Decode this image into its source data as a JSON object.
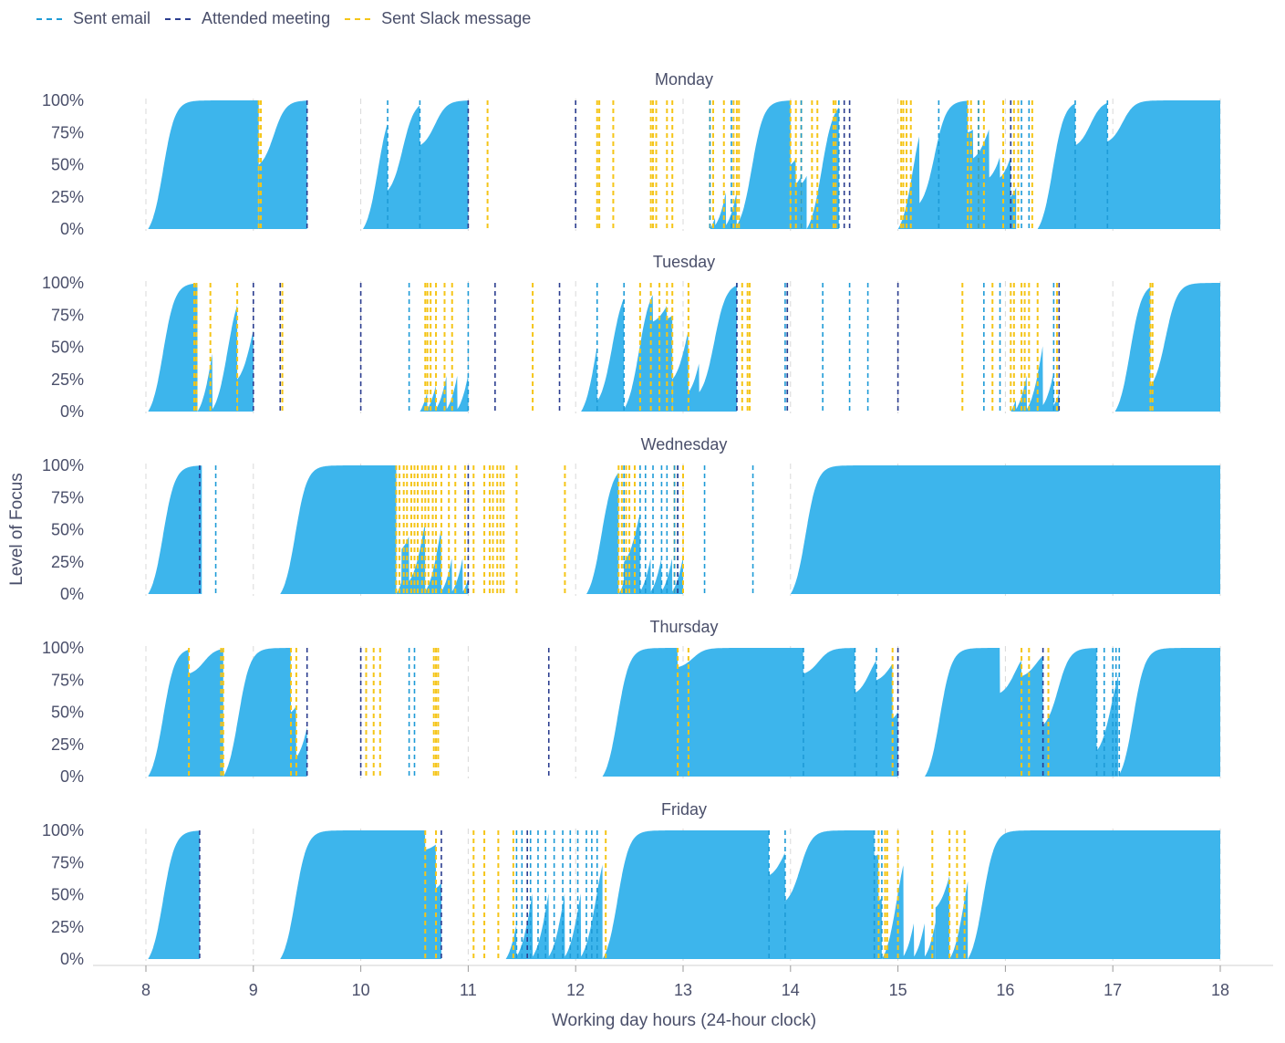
{
  "legend": {
    "items": [
      {
        "label": "Sent email",
        "color": "#1e9bd7"
      },
      {
        "label": "Attended meeting",
        "color": "#2b3d8f"
      },
      {
        "label": "Sent Slack message",
        "color": "#f5c518"
      }
    ]
  },
  "chart_data": {
    "type": "area",
    "xlabel": "Working day hours (24-hour clock)",
    "ylabel": "Level of Focus",
    "xlim": [
      8,
      18
    ],
    "x_ticks": [
      8,
      9,
      10,
      11,
      12,
      13,
      14,
      15,
      16,
      17,
      18
    ],
    "ylim": [
      0,
      100
    ],
    "y_ticks": [
      "0%",
      "25%",
      "50%",
      "75%",
      "100%"
    ],
    "grid": "vertical dashed",
    "legend_position": "top-left",
    "fill_color": "#3db5ec",
    "panels": [
      {
        "day": "Monday",
        "focus_segments": [
          {
            "start": 8.02,
            "end": 9.05,
            "floor": 0,
            "resets": []
          },
          {
            "start": 9.05,
            "end": 9.5,
            "floor": 0.5,
            "resets": []
          },
          {
            "start": 10.02,
            "end": 11.0,
            "floor": 0,
            "resets": [
              [
                10.25,
                0.3
              ],
              [
                10.55,
                0.65
              ]
            ]
          },
          {
            "start": 13.25,
            "end": 14.0,
            "floor": 0,
            "resets": [
              [
                13.3,
                0.03
              ],
              [
                13.4,
                0.03
              ],
              [
                13.5,
                0.03
              ]
            ]
          },
          {
            "start": 14.0,
            "end": 14.15,
            "floor": 0.5,
            "resets": [
              [
                14.05,
                0.35
              ],
              [
                14.1,
                0.35
              ]
            ]
          },
          {
            "start": 14.15,
            "end": 14.45,
            "floor": 0,
            "resets": []
          },
          {
            "start": 15.0,
            "end": 16.1,
            "floor": 0,
            "resets": [
              [
                15.2,
                0.2
              ],
              [
                15.65,
                0.75
              ],
              [
                15.7,
                0.55
              ],
              [
                15.85,
                0.4
              ],
              [
                15.95,
                0.4
              ],
              [
                16.05,
                0.25
              ]
            ]
          },
          {
            "start": 16.3,
            "end": 18.0,
            "floor": 0,
            "resets": [
              [
                16.65,
                0.65
              ],
              [
                16.95,
                0.68
              ]
            ]
          }
        ],
        "events": {
          "email": [
            10.25,
            10.55,
            13.25,
            13.45,
            14.1,
            14.45,
            15.38,
            15.75,
            16.05,
            16.15,
            16.22,
            16.65,
            16.95
          ],
          "meeting": [
            9.5,
            11.0,
            12.0,
            14.5,
            14.55,
            16.05
          ],
          "slack": [
            9.05,
            9.07,
            11.18,
            12.2,
            12.22,
            12.35,
            12.7,
            12.72,
            12.75,
            12.85,
            12.9,
            13.25,
            13.28,
            13.38,
            13.47,
            13.5,
            13.52,
            14.0,
            14.05,
            14.1,
            14.2,
            14.25,
            14.4,
            14.42,
            15.03,
            15.05,
            15.08,
            15.12,
            15.65,
            15.68,
            15.75,
            15.8,
            15.98,
            16.08,
            16.12,
            16.25
          ]
        }
      },
      {
        "day": "Tuesday",
        "focus_segments": [
          {
            "start": 8.02,
            "end": 8.48,
            "floor": 0,
            "resets": []
          },
          {
            "start": 8.48,
            "end": 8.85,
            "floor": 0,
            "resets": [
              [
                8.62,
                0.02
              ]
            ]
          },
          {
            "start": 8.85,
            "end": 9.0,
            "floor": 0.25,
            "resets": []
          },
          {
            "start": 10.55,
            "end": 11.0,
            "floor": 0,
            "resets": [
              [
                10.62,
                0.02
              ],
              [
                10.7,
                0.02
              ],
              [
                10.8,
                0.02
              ],
              [
                10.9,
                0.02
              ]
            ]
          },
          {
            "start": 12.05,
            "end": 12.9,
            "floor": 0,
            "resets": [
              [
                12.2,
                0.08
              ],
              [
                12.45,
                0.02
              ],
              [
                12.72,
                0.7
              ],
              [
                12.85,
                0.72
              ]
            ]
          },
          {
            "start": 12.9,
            "end": 13.5,
            "floor": 0.25,
            "resets": [
              [
                13.05,
                0.15
              ],
              [
                13.15,
                0.15
              ]
            ]
          },
          {
            "start": 16.05,
            "end": 16.5,
            "floor": 0,
            "resets": [
              [
                16.1,
                0.02
              ],
              [
                16.2,
                0.02
              ],
              [
                16.35,
                0.05
              ],
              [
                16.45,
                0.05
              ]
            ]
          },
          {
            "start": 17.02,
            "end": 17.35,
            "floor": 0,
            "resets": []
          },
          {
            "start": 17.35,
            "end": 18.0,
            "floor": 0.2,
            "resets": []
          }
        ],
        "events": {
          "email": [
            10.45,
            11.0,
            12.2,
            12.45,
            13.5,
            13.95,
            13.97,
            14.3,
            14.55,
            14.72,
            15.8,
            15.95,
            16.45
          ],
          "meeting": [
            9.0,
            9.25,
            10.0,
            11.25,
            11.85,
            13.5,
            13.97,
            15.0,
            16.5
          ],
          "slack": [
            8.45,
            8.47,
            8.6,
            8.85,
            9.27,
            10.6,
            10.62,
            10.65,
            10.7,
            10.78,
            10.85,
            11.6,
            12.6,
            12.7,
            12.78,
            12.85,
            12.9,
            13.05,
            13.55,
            13.6,
            13.62,
            15.6,
            15.88,
            16.05,
            16.08,
            16.15,
            16.18,
            16.22,
            16.3,
            16.48,
            17.35,
            17.37
          ]
        }
      },
      {
        "day": "Wednesday",
        "focus_segments": [
          {
            "start": 8.02,
            "end": 8.52,
            "floor": 0,
            "resets": []
          },
          {
            "start": 9.25,
            "end": 10.33,
            "floor": 0,
            "resets": []
          },
          {
            "start": 10.33,
            "end": 11.0,
            "floor": 0,
            "resets": [
              [
                10.38,
                0.35
              ],
              [
                10.45,
                0.1
              ],
              [
                10.6,
                0.02
              ],
              [
                10.75,
                0.02
              ],
              [
                10.85,
                0.02
              ],
              [
                10.95,
                0.02
              ]
            ]
          },
          {
            "start": 12.1,
            "end": 12.4,
            "floor": 0,
            "resets": []
          },
          {
            "start": 12.4,
            "end": 13.0,
            "floor": 0,
            "resets": [
              [
                12.45,
                0.25
              ],
              [
                12.6,
                0.02
              ],
              [
                12.7,
                0.02
              ],
              [
                12.8,
                0.02
              ],
              [
                12.9,
                0.02
              ]
            ]
          },
          {
            "start": 14.0,
            "end": 18.0,
            "floor": 0,
            "resets": []
          }
        ],
        "events": {
          "email": [
            8.65,
            12.45,
            12.6,
            12.65,
            12.72,
            12.8,
            12.85,
            12.92,
            12.95,
            13.2,
            13.65
          ],
          "meeting": [
            8.5,
            11.0,
            12.95
          ],
          "slack": [
            10.33,
            10.36,
            10.4,
            10.43,
            10.47,
            10.5,
            10.53,
            10.57,
            10.6,
            10.63,
            10.67,
            10.7,
            10.75,
            10.82,
            10.88,
            10.97,
            11.05,
            11.15,
            11.2,
            11.23,
            11.27,
            11.3,
            11.33,
            11.45,
            11.9,
            12.4,
            12.43,
            12.47,
            12.5,
            12.55,
            12.92,
            13.0
          ]
        }
      },
      {
        "day": "Thursday",
        "focus_segments": [
          {
            "start": 8.02,
            "end": 8.72,
            "floor": 0,
            "resets": [
              [
                8.4,
                0.8
              ]
            ]
          },
          {
            "start": 8.72,
            "end": 9.5,
            "floor": 0,
            "resets": [
              [
                9.35,
                0.5
              ],
              [
                9.4,
                0.15
              ]
            ]
          },
          {
            "start": 12.25,
            "end": 15.0,
            "floor": 0,
            "resets": [
              [
                12.95,
                0.85
              ],
              [
                14.12,
                0.8
              ],
              [
                14.6,
                0.65
              ],
              [
                14.8,
                0.75
              ],
              [
                14.95,
                0.45
              ]
            ]
          },
          {
            "start": 15.25,
            "end": 16.85,
            "floor": 0,
            "resets": [
              [
                15.95,
                0.65
              ],
              [
                16.15,
                0.78
              ],
              [
                16.35,
                0.4
              ]
            ]
          },
          {
            "start": 16.85,
            "end": 17.05,
            "floor": 0.2,
            "resets": []
          },
          {
            "start": 17.05,
            "end": 18.0,
            "floor": 0,
            "resets": []
          }
        ],
        "events": {
          "email": [
            10.45,
            10.5,
            14.12,
            14.6,
            14.8,
            16.85,
            16.92,
            17.0,
            17.03,
            17.06
          ],
          "meeting": [
            9.5,
            10.0,
            11.75,
            15.0,
            16.35
          ],
          "slack": [
            8.4,
            8.7,
            8.72,
            9.35,
            9.4,
            10.05,
            10.12,
            10.18,
            10.68,
            10.7,
            10.72,
            12.95,
            13.05,
            14.95,
            16.15,
            16.22,
            16.4
          ]
        }
      },
      {
        "day": "Friday",
        "focus_segments": [
          {
            "start": 8.02,
            "end": 8.5,
            "floor": 0,
            "resets": []
          },
          {
            "start": 9.25,
            "end": 10.75,
            "floor": 0,
            "resets": [
              [
                10.6,
                0.85
              ],
              [
                10.7,
                0.55
              ]
            ]
          },
          {
            "start": 11.35,
            "end": 12.25,
            "floor": 0,
            "resets": [
              [
                11.45,
                0.02
              ],
              [
                11.6,
                0.02
              ],
              [
                11.75,
                0.02
              ],
              [
                11.9,
                0.02
              ],
              [
                12.05,
                0.02
              ]
            ]
          },
          {
            "start": 12.25,
            "end": 14.85,
            "floor": 0,
            "resets": [
              [
                13.8,
                0.65
              ],
              [
                13.95,
                0.45
              ],
              [
                14.78,
                0.8
              ],
              [
                14.82,
                0.45
              ]
            ]
          },
          {
            "start": 14.85,
            "end": 15.35,
            "floor": 0,
            "resets": [
              [
                15.05,
                0.02
              ],
              [
                15.15,
                0.02
              ],
              [
                15.25,
                0.02
              ]
            ]
          },
          {
            "start": 15.35,
            "end": 15.48,
            "floor": 0.4,
            "resets": []
          },
          {
            "start": 15.48,
            "end": 15.65,
            "floor": 0,
            "resets": []
          },
          {
            "start": 15.65,
            "end": 18.0,
            "floor": 0,
            "resets": []
          }
        ],
        "events": {
          "email": [
            11.45,
            11.5,
            11.58,
            11.65,
            11.72,
            11.8,
            11.88,
            11.95,
            12.02,
            12.1,
            12.15,
            12.2,
            13.8,
            13.95,
            14.78,
            14.85
          ],
          "meeting": [
            8.5,
            10.75,
            11.55
          ],
          "slack": [
            10.6,
            10.7,
            11.05,
            11.15,
            11.28,
            11.42,
            12.28,
            14.82,
            14.88,
            14.9,
            15.0,
            15.32,
            15.48,
            15.55,
            15.62
          ]
        }
      }
    ]
  }
}
